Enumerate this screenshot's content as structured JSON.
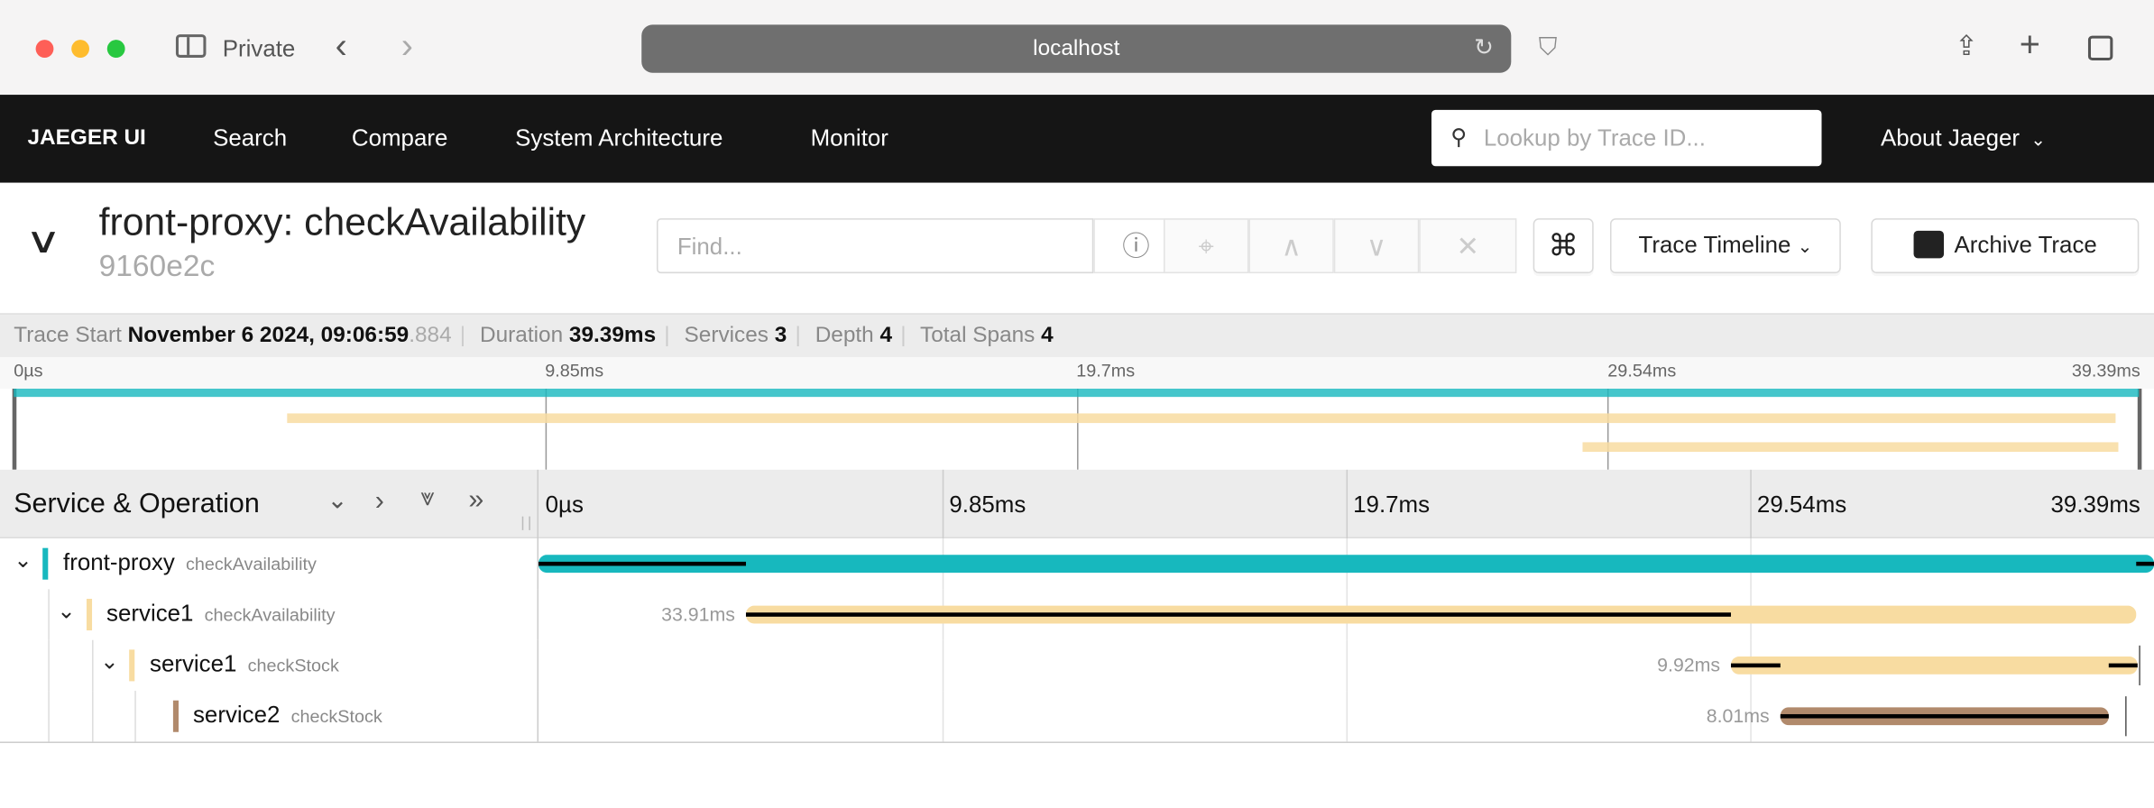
{
  "browser": {
    "mode_label": "Private",
    "url": "localhost",
    "icons": [
      "sidebar-icon",
      "back-icon",
      "forward-icon",
      "reload-icon",
      "shield-icon",
      "share-icon",
      "new-tab-icon",
      "tabs-icon"
    ]
  },
  "nav": {
    "brand": "JAEGER UI",
    "items": [
      "Search",
      "Compare",
      "System Architecture",
      "Monitor"
    ],
    "lookup_placeholder": "Lookup by Trace ID...",
    "about": "About Jaeger"
  },
  "trace": {
    "title": "front-proxy: checkAvailability",
    "id": "9160e2c",
    "find_placeholder": "Find...",
    "view_select": "Trace Timeline",
    "archive_label": "Archive Trace"
  },
  "summary": {
    "start_label": "Trace Start",
    "start_value": "November 6 2024, 09:06:59",
    "start_ms": ".884",
    "duration_label": "Duration",
    "duration_value": "39.39ms",
    "services_label": "Services",
    "services_value": "3",
    "depth_label": "Depth",
    "depth_value": "4",
    "spans_label": "Total Spans",
    "spans_value": "4"
  },
  "ticks": [
    "0µs",
    "9.85ms",
    "19.7ms",
    "29.54ms",
    "39.39ms"
  ],
  "total_ms": 39.39,
  "header": {
    "title": "Service & Operation"
  },
  "colors": {
    "front-proxy": "#17b8be",
    "service1": "#f8dca1",
    "service2": "#b18a6c"
  },
  "spans": [
    {
      "service": "front-proxy",
      "operation": "checkAvailability",
      "depth": 0,
      "start_ms": 0,
      "duration_ms": 39.39,
      "duration_label": ""
    },
    {
      "service": "service1",
      "operation": "checkAvailability",
      "depth": 1,
      "start_ms": 5.06,
      "duration_ms": 33.91,
      "duration_label": "33.91ms"
    },
    {
      "service": "service1",
      "operation": "checkStock",
      "depth": 2,
      "start_ms": 29.08,
      "duration_ms": 9.92,
      "duration_label": "9.92ms"
    },
    {
      "service": "service2",
      "operation": "checkStock",
      "depth": 3,
      "start_ms": 30.28,
      "duration_ms": 8.01,
      "duration_label": "8.01ms"
    }
  ]
}
